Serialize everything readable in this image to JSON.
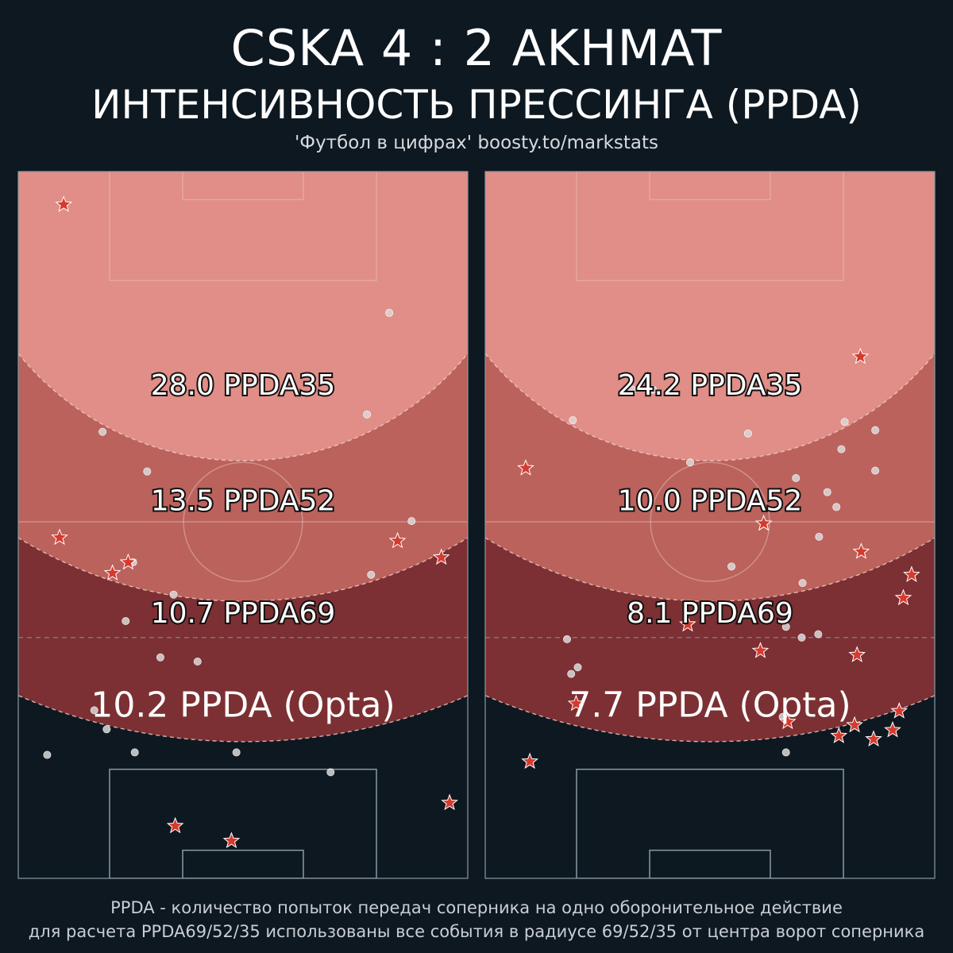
{
  "header": {
    "title": "CSKA  4 : 2  AKHMAT",
    "subtitle": "ИНТЕНСИВНОСТЬ ПРЕССИНГА (PPDA)",
    "source": "'Футбол в цифрах' boosty.to/markstats"
  },
  "footer": {
    "line1": "PPDA - количество попыток передач соперника на одно оборонительное действие",
    "line2": "для расчета PPDA69/52/35 использованы все события в радиусе 69/52/35 от центра ворот соперника"
  },
  "colors": {
    "background": "#0e1821",
    "zone35": "#e08e87",
    "zone52": "#bb625c",
    "zone69": "#7c3033",
    "pitch_lines": "#8a9aa3",
    "star": "#d63a2f",
    "dot": "#d9d9d9"
  },
  "chart_data": [
    {
      "type": "scatter",
      "team": "CSKA",
      "zones": [
        {
          "label": "28.0 PPDA35",
          "radius": 35,
          "ppda": 28.0
        },
        {
          "label": "13.5 PPDA52",
          "radius": 52,
          "ppda": 13.5
        },
        {
          "label": "10.7 PPDA69",
          "radius": 69,
          "ppda": 10.7
        }
      ],
      "opta_label": "10.2 PPDA (Opta)",
      "opta_ppda": 10.2,
      "stars": [
        [
          5.5,
          4.0
        ],
        [
          5.0,
          44.3
        ],
        [
          11.4,
          48.6
        ],
        [
          13.3,
          47.3
        ],
        [
          19.0,
          79.2
        ],
        [
          25.8,
          81.0
        ],
        [
          45.9,
          44.7
        ],
        [
          51.2,
          46.7
        ],
        [
          52.2,
          76.4
        ]
      ],
      "dots": [
        [
          44.9,
          17.1
        ],
        [
          10.2,
          31.5
        ],
        [
          42.2,
          29.4
        ],
        [
          15.6,
          36.3
        ],
        [
          47.6,
          42.3
        ],
        [
          13.9,
          47.3
        ],
        [
          42.7,
          48.8
        ],
        [
          18.8,
          51.2
        ],
        [
          13.0,
          54.4
        ],
        [
          17.2,
          58.8
        ],
        [
          21.7,
          59.3
        ],
        [
          9.2,
          65.2
        ],
        [
          10.7,
          67.5
        ],
        [
          3.5,
          70.6
        ],
        [
          14.1,
          70.3
        ],
        [
          26.4,
          70.3
        ],
        [
          37.8,
          72.7
        ]
      ]
    },
    {
      "type": "scatter",
      "team": "AKHMAT",
      "zones": [
        {
          "label": "24.2 PPDA35",
          "radius": 35,
          "ppda": 24.2
        },
        {
          "label": "10.0 PPDA52",
          "radius": 52,
          "ppda": 10.0
        },
        {
          "label": "8.1 PPDA69",
          "radius": 69,
          "ppda": 8.1
        }
      ],
      "opta_label": "7.7 PPDA (Opta)",
      "opta_ppda": 7.7,
      "stars": [
        [
          4.9,
          35.9
        ],
        [
          45.4,
          22.4
        ],
        [
          33.7,
          42.6
        ],
        [
          45.5,
          46.0
        ],
        [
          51.6,
          48.8
        ],
        [
          50.6,
          51.6
        ],
        [
          24.5,
          54.8
        ],
        [
          33.3,
          58.0
        ],
        [
          45.0,
          58.5
        ],
        [
          11.0,
          64.4
        ],
        [
          36.6,
          66.6
        ],
        [
          44.7,
          67.0
        ],
        [
          42.8,
          68.3
        ],
        [
          47.0,
          68.7
        ],
        [
          49.3,
          67.6
        ],
        [
          50.1,
          65.3
        ],
        [
          5.4,
          71.4
        ]
      ],
      "dots": [
        [
          17.8,
          26.4
        ],
        [
          20.3,
          26.4
        ],
        [
          10.6,
          30.1
        ],
        [
          31.8,
          31.7
        ],
        [
          43.5,
          30.3
        ],
        [
          47.2,
          31.3
        ],
        [
          43.1,
          33.6
        ],
        [
          24.8,
          35.2
        ],
        [
          47.2,
          36.2
        ],
        [
          37.6,
          37.1
        ],
        [
          41.4,
          38.8
        ],
        [
          42.5,
          40.6
        ],
        [
          40.4,
          44.2
        ],
        [
          29.8,
          47.8
        ],
        [
          38.4,
          49.8
        ],
        [
          36.4,
          55.1
        ],
        [
          38.3,
          56.4
        ],
        [
          9.9,
          56.6
        ],
        [
          40.3,
          56.0
        ],
        [
          11.2,
          60.0
        ],
        [
          10.4,
          60.8
        ],
        [
          36.0,
          66.0
        ],
        [
          36.4,
          70.3
        ]
      ]
    }
  ]
}
